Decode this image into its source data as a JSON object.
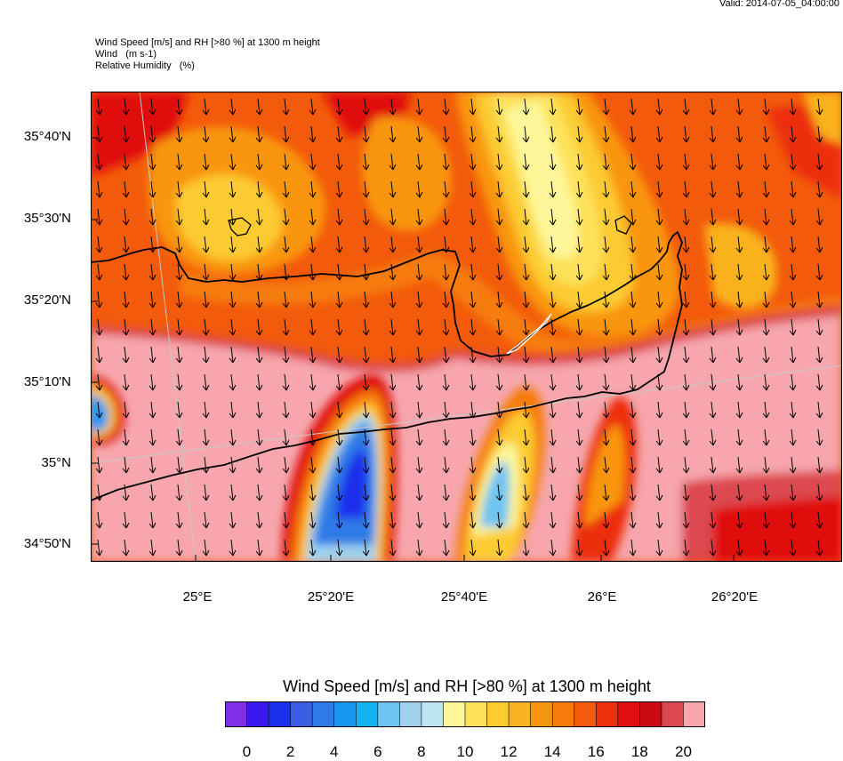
{
  "valid_time": "Valid: 2014-07-05_04:00:00",
  "header": {
    "line1": "Wind Speed [m/s] and RH [>80 %] at 1300 m height",
    "line2": "Wind   (m s-1)",
    "line3": "Relative Humidity   (%)"
  },
  "map": {
    "lat_labels": [
      "35°40'N",
      "35°30'N",
      "35°20'N",
      "35°10'N",
      "35°N",
      "34°50'N"
    ],
    "lon_labels": [
      "25°E",
      "25°20'E",
      "25°40'E",
      "26°E",
      "26°20'E"
    ],
    "lat_values_deg": [
      35.6667,
      35.5,
      35.3333,
      35.1667,
      35.0,
      34.8333
    ],
    "lon_values_deg": [
      25.0,
      25.3333,
      25.6667,
      26.0,
      26.3333
    ],
    "lat_range_deg": [
      34.805,
      35.74
    ],
    "lon_range_deg": [
      24.74,
      26.62
    ],
    "feature": "Crete coastline",
    "wind_direction": "northerly"
  },
  "colorbar": {
    "title": "Wind Speed [m/s] and RH [>80 %] at 1300 m height",
    "labels": [
      "0",
      "2",
      "4",
      "6",
      "8",
      "10",
      "12",
      "14",
      "16",
      "18",
      "20"
    ],
    "colors": [
      "#7f2fe6",
      "#3a18ee",
      "#1a2fec",
      "#3a5fe6",
      "#2f7ae6",
      "#1a98f0",
      "#14b4f2",
      "#6ec4f0",
      "#9ed2ee",
      "#bfe4f4",
      "#fdf79a",
      "#fde25a",
      "#fccb32",
      "#fab21e",
      "#f99611",
      "#f67b0a",
      "#f35a0b",
      "#ec2f0c",
      "#e00e10",
      "#c90b12",
      "#dc4850",
      "#f6a6ac"
    ]
  }
}
